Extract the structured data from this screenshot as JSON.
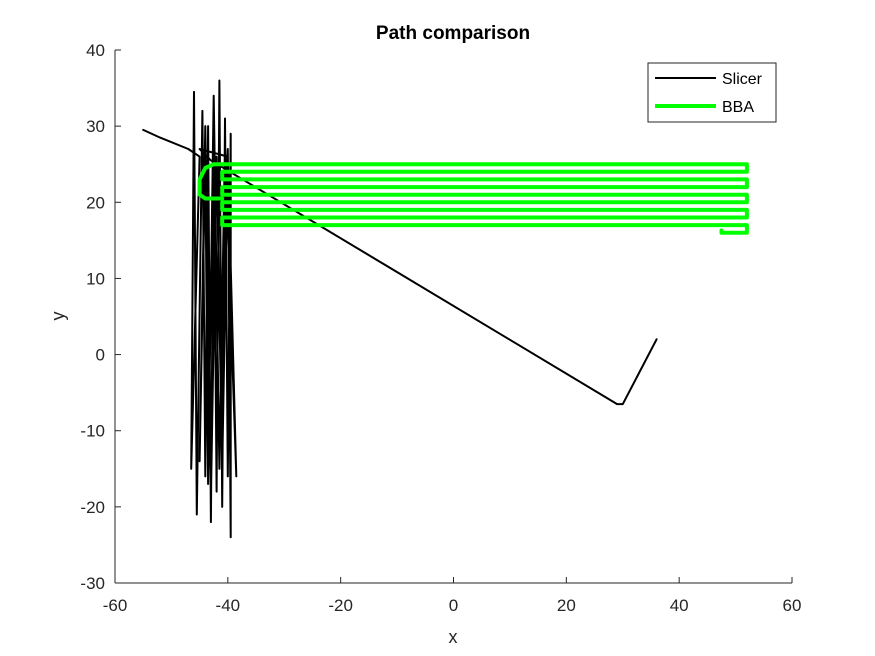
{
  "chart_data": {
    "type": "line",
    "title": "Path comparison",
    "xlabel": "x",
    "ylabel": "y",
    "xlim": [
      -60,
      60
    ],
    "ylim": [
      -30,
      40
    ],
    "xticks": [
      -60,
      -40,
      -20,
      0,
      20,
      40,
      60
    ],
    "yticks": [
      -30,
      -20,
      -10,
      0,
      10,
      20,
      30,
      40
    ],
    "grid": false,
    "legend_position": "top-right",
    "series": [
      {
        "name": "Slicer",
        "color": "#000000",
        "points": [
          [
            -55,
            29.5
          ],
          [
            -52,
            28.5
          ],
          [
            -47,
            27
          ],
          [
            -45,
            26
          ],
          [
            -46.5,
            -15
          ],
          [
            -46,
            34.5
          ],
          [
            -45.5,
            -21
          ],
          [
            -44.5,
            32
          ],
          [
            -44,
            -16
          ],
          [
            -43.5,
            30
          ],
          [
            -43,
            -22
          ],
          [
            -42.5,
            28
          ],
          [
            -42,
            -18
          ],
          [
            -41.5,
            36
          ],
          [
            -41,
            -20
          ],
          [
            -40.5,
            31
          ],
          [
            -40,
            -16
          ],
          [
            -39.5,
            29
          ],
          [
            -39.5,
            -24
          ],
          [
            -40,
            27
          ],
          [
            -41,
            -15
          ],
          [
            -42,
            26
          ],
          [
            -43,
            -19
          ],
          [
            -44,
            30
          ],
          [
            -45,
            -14
          ],
          [
            -44,
            26
          ],
          [
            -43.5,
            -17
          ],
          [
            -42.5,
            34
          ],
          [
            -41.5,
            -15
          ],
          [
            -40.5,
            28
          ],
          [
            -38.5,
            -16
          ],
          [
            -40,
            26
          ],
          [
            -45,
            27
          ],
          [
            -43,
            25.5
          ],
          [
            29,
            -6.5
          ],
          [
            30,
            -6.5
          ],
          [
            36,
            2
          ]
        ]
      },
      {
        "name": "BBA",
        "color": "#00ff00",
        "points": [
          [
            -39,
            25
          ],
          [
            52,
            25
          ],
          [
            52,
            24
          ],
          [
            -41,
            24
          ],
          [
            -41,
            23
          ],
          [
            52,
            23
          ],
          [
            52,
            22
          ],
          [
            -41,
            22
          ],
          [
            -41,
            21
          ],
          [
            52,
            21
          ],
          [
            52,
            20
          ],
          [
            -41,
            20
          ],
          [
            -41,
            19
          ],
          [
            52,
            19
          ],
          [
            52,
            18
          ],
          [
            -41,
            18
          ],
          [
            -41,
            17
          ],
          [
            52,
            17
          ],
          [
            52,
            16
          ],
          [
            47.5,
            16
          ],
          [
            47.5,
            16.3
          ]
        ],
        "hook": [
          [
            -39,
            25
          ],
          [
            -42.5,
            25
          ],
          [
            -44,
            24.5
          ],
          [
            -45,
            23
          ],
          [
            -45,
            21
          ],
          [
            -44,
            20.5
          ],
          [
            -41,
            20.5
          ]
        ]
      }
    ]
  }
}
